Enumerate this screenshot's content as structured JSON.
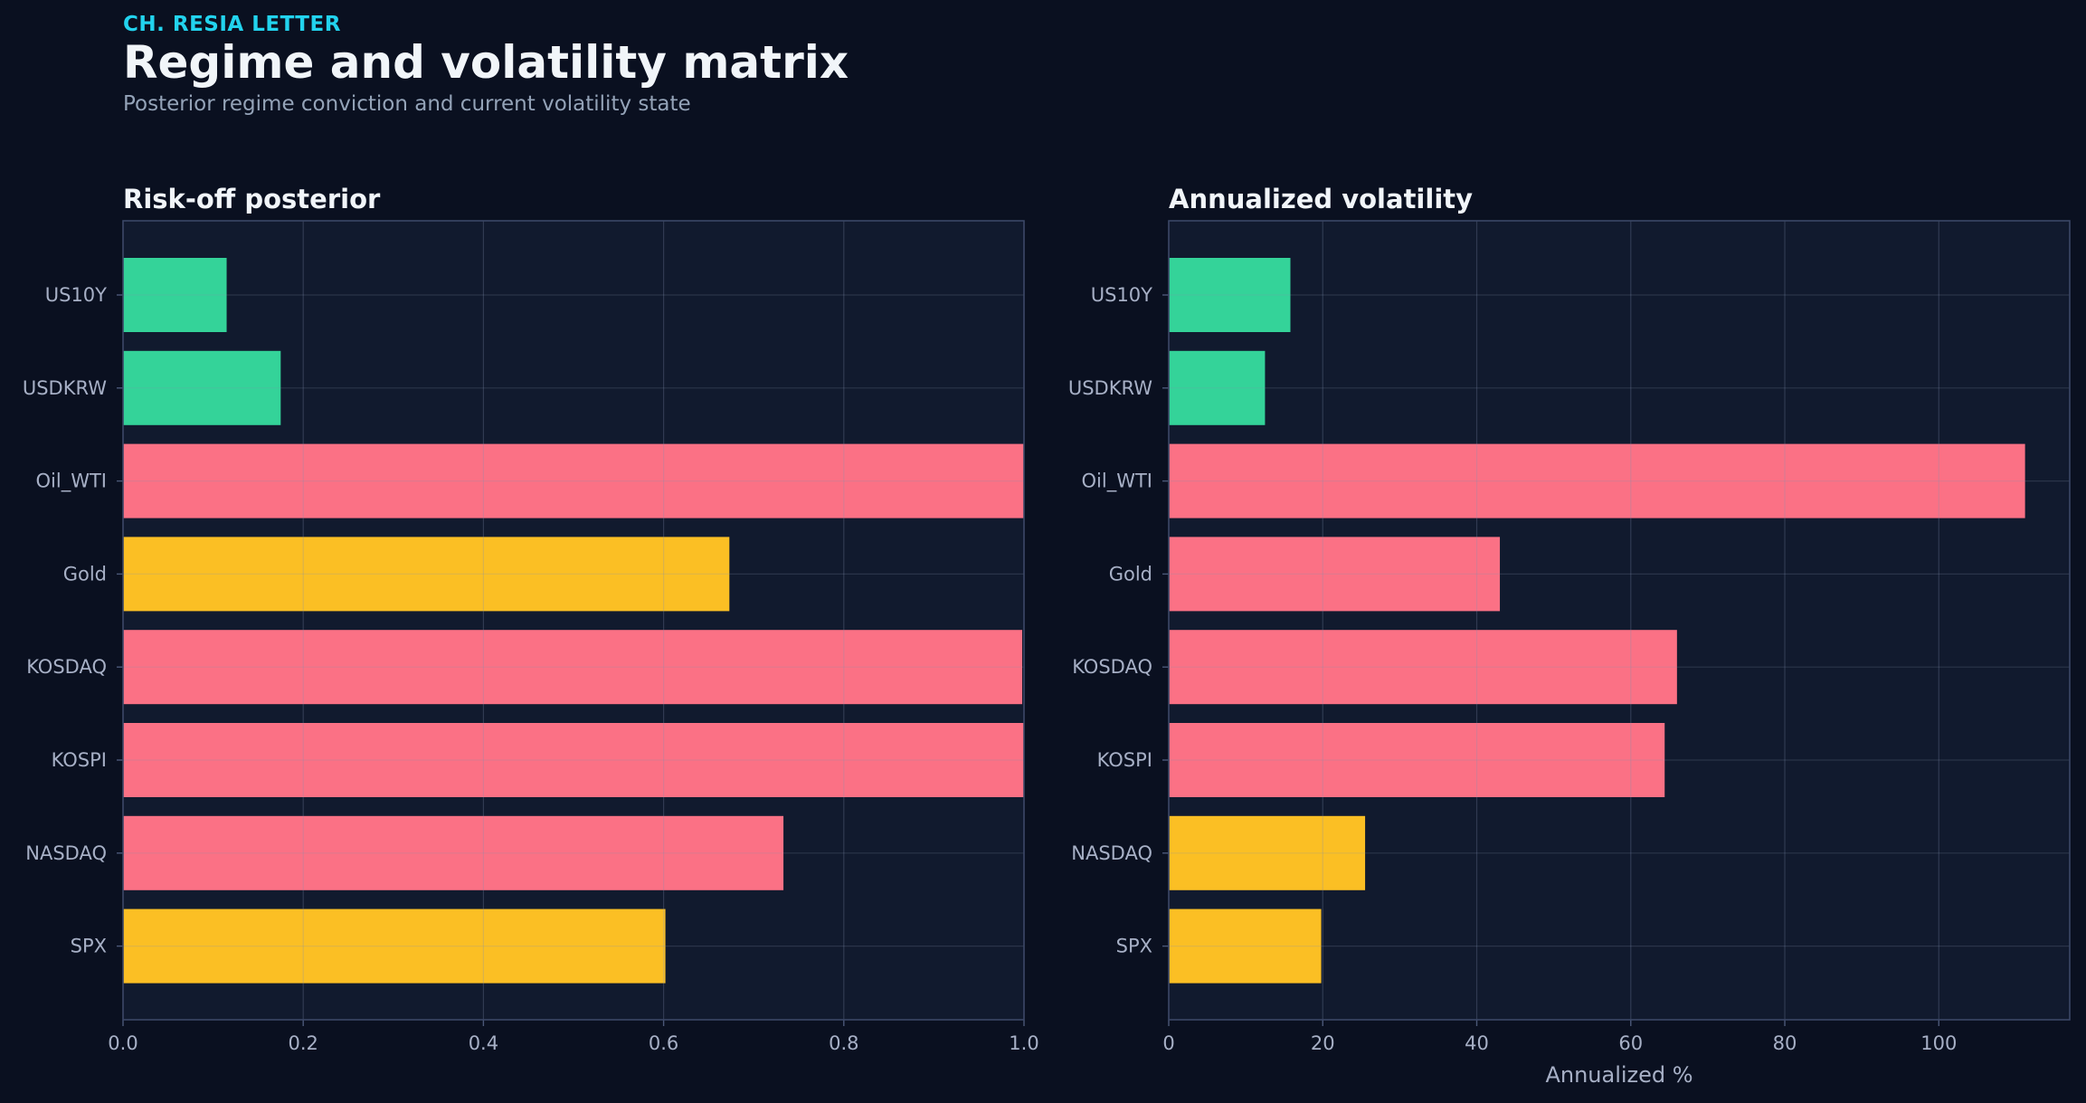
{
  "header": {
    "kicker": "CH. RESIA LETTER",
    "title": "Regime and volatility matrix",
    "subtitle": "Posterior regime conviction and current volatility state"
  },
  "colors": {
    "background": "#0a1020",
    "panel": "#111a2e",
    "green": "#34d399",
    "red": "#fb7185",
    "yellow": "#fbbf24",
    "accent": "#22d3ee"
  },
  "chart_data": [
    {
      "type": "bar",
      "orientation": "horizontal",
      "title": "Risk-off posterior",
      "xlabel": "",
      "categories": [
        "US10Y",
        "USDKRW",
        "Oil_WTI",
        "Gold",
        "KOSDAQ",
        "KOSPI",
        "NASDAQ",
        "SPX"
      ],
      "values": [
        0.115,
        0.175,
        1.0,
        0.673,
        0.998,
        1.0,
        0.733,
        0.602
      ],
      "bar_colors": [
        "green",
        "green",
        "red",
        "yellow",
        "red",
        "red",
        "red",
        "yellow"
      ],
      "xlim": [
        0,
        1.0
      ],
      "xticks": [
        "0.0",
        "0.2",
        "0.4",
        "0.6",
        "0.8",
        "1.0"
      ],
      "grid": true
    },
    {
      "type": "bar",
      "orientation": "horizontal",
      "title": "Annualized volatility",
      "xlabel": "Annualized %",
      "categories": [
        "US10Y",
        "USDKRW",
        "Oil_WTI",
        "Gold",
        "KOSDAQ",
        "KOSPI",
        "NASDAQ",
        "SPX"
      ],
      "values": [
        15.8,
        12.5,
        111.2,
        43.0,
        66.0,
        64.4,
        25.5,
        19.8
      ],
      "bar_colors": [
        "green",
        "green",
        "red",
        "red",
        "red",
        "red",
        "yellow",
        "yellow"
      ],
      "xlim": [
        0,
        117
      ],
      "xticks": [
        "0",
        "20",
        "40",
        "60",
        "80",
        "100"
      ],
      "grid": true
    }
  ]
}
